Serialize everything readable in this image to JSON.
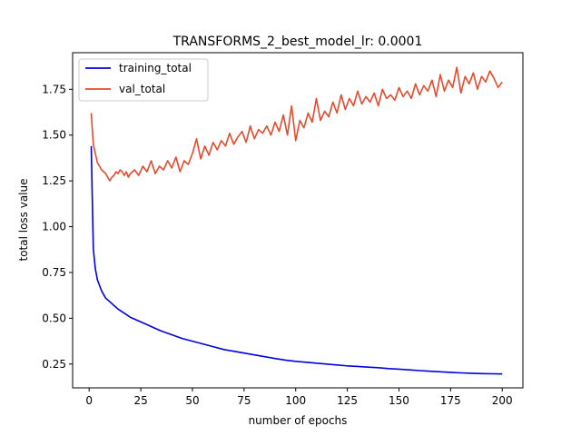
{
  "chart_data": {
    "type": "line",
    "title": "TRANSFORMS_2_best_model_lr: 0.0001",
    "xlabel": "number of epochs",
    "ylabel": "total loss value",
    "xlim": [
      -8,
      210
    ],
    "ylim": [
      0.12,
      1.95
    ],
    "xticks": [
      0,
      25,
      50,
      75,
      100,
      125,
      150,
      175,
      200
    ],
    "yticks": [
      0.25,
      0.5,
      0.75,
      1.0,
      1.25,
      1.5,
      1.75
    ],
    "ytick_labels": [
      "0.25",
      "0.50",
      "0.75",
      "1.00",
      "1.25",
      "1.50",
      "1.75"
    ],
    "grid": false,
    "legend_position": "top-left",
    "series": [
      {
        "name": "training_total",
        "color": "#0000dd",
        "points": [
          [
            1,
            1.44
          ],
          [
            2,
            0.88
          ],
          [
            3,
            0.77
          ],
          [
            4,
            0.71
          ],
          [
            5,
            0.68
          ],
          [
            6,
            0.65
          ],
          [
            7,
            0.63
          ],
          [
            8,
            0.61
          ],
          [
            9,
            0.6
          ],
          [
            10,
            0.59
          ],
          [
            12,
            0.57
          ],
          [
            14,
            0.55
          ],
          [
            16,
            0.535
          ],
          [
            18,
            0.52
          ],
          [
            20,
            0.505
          ],
          [
            22,
            0.495
          ],
          [
            25,
            0.48
          ],
          [
            28,
            0.465
          ],
          [
            30,
            0.455
          ],
          [
            35,
            0.43
          ],
          [
            40,
            0.41
          ],
          [
            45,
            0.39
          ],
          [
            50,
            0.375
          ],
          [
            55,
            0.36
          ],
          [
            60,
            0.345
          ],
          [
            65,
            0.33
          ],
          [
            70,
            0.32
          ],
          [
            75,
            0.31
          ],
          [
            80,
            0.3
          ],
          [
            85,
            0.29
          ],
          [
            90,
            0.28
          ],
          [
            95,
            0.272
          ],
          [
            100,
            0.265
          ],
          [
            105,
            0.26
          ],
          [
            110,
            0.255
          ],
          [
            115,
            0.25
          ],
          [
            120,
            0.245
          ],
          [
            125,
            0.24
          ],
          [
            130,
            0.237
          ],
          [
            135,
            0.233
          ],
          [
            140,
            0.23
          ],
          [
            145,
            0.225
          ],
          [
            150,
            0.222
          ],
          [
            155,
            0.218
          ],
          [
            160,
            0.214
          ],
          [
            165,
            0.211
          ],
          [
            170,
            0.208
          ],
          [
            175,
            0.205
          ],
          [
            180,
            0.202
          ],
          [
            185,
            0.2
          ],
          [
            190,
            0.198
          ],
          [
            195,
            0.197
          ],
          [
            200,
            0.196
          ]
        ]
      },
      {
        "name": "val_total",
        "color": "#e8492b",
        "points": [
          [
            1,
            1.62
          ],
          [
            2,
            1.45
          ],
          [
            3,
            1.4
          ],
          [
            4,
            1.35
          ],
          [
            5,
            1.33
          ],
          [
            6,
            1.31
          ],
          [
            7,
            1.3
          ],
          [
            8,
            1.29
          ],
          [
            9,
            1.27
          ],
          [
            10,
            1.25
          ],
          [
            11,
            1.27
          ],
          [
            12,
            1.28
          ],
          [
            13,
            1.3
          ],
          [
            14,
            1.29
          ],
          [
            15,
            1.31
          ],
          [
            16,
            1.3
          ],
          [
            17,
            1.28
          ],
          [
            18,
            1.3
          ],
          [
            19,
            1.27
          ],
          [
            20,
            1.29
          ],
          [
            22,
            1.31
          ],
          [
            24,
            1.28
          ],
          [
            26,
            1.33
          ],
          [
            28,
            1.3
          ],
          [
            30,
            1.36
          ],
          [
            32,
            1.29
          ],
          [
            34,
            1.33
          ],
          [
            36,
            1.31
          ],
          [
            38,
            1.36
          ],
          [
            40,
            1.32
          ],
          [
            42,
            1.38
          ],
          [
            44,
            1.3
          ],
          [
            46,
            1.36
          ],
          [
            48,
            1.34
          ],
          [
            50,
            1.4
          ],
          [
            52,
            1.48
          ],
          [
            54,
            1.37
          ],
          [
            56,
            1.44
          ],
          [
            58,
            1.39
          ],
          [
            60,
            1.46
          ],
          [
            62,
            1.42
          ],
          [
            64,
            1.47
          ],
          [
            66,
            1.44
          ],
          [
            68,
            1.51
          ],
          [
            70,
            1.45
          ],
          [
            72,
            1.49
          ],
          [
            74,
            1.52
          ],
          [
            76,
            1.46
          ],
          [
            78,
            1.55
          ],
          [
            80,
            1.48
          ],
          [
            82,
            1.53
          ],
          [
            84,
            1.51
          ],
          [
            86,
            1.55
          ],
          [
            88,
            1.5
          ],
          [
            90,
            1.57
          ],
          [
            92,
            1.52
          ],
          [
            94,
            1.61
          ],
          [
            96,
            1.5
          ],
          [
            98,
            1.66
          ],
          [
            100,
            1.47
          ],
          [
            102,
            1.58
          ],
          [
            104,
            1.54
          ],
          [
            106,
            1.62
          ],
          [
            108,
            1.57
          ],
          [
            110,
            1.7
          ],
          [
            112,
            1.58
          ],
          [
            114,
            1.63
          ],
          [
            116,
            1.6
          ],
          [
            118,
            1.68
          ],
          [
            120,
            1.62
          ],
          [
            122,
            1.72
          ],
          [
            124,
            1.64
          ],
          [
            126,
            1.7
          ],
          [
            128,
            1.66
          ],
          [
            130,
            1.74
          ],
          [
            132,
            1.67
          ],
          [
            134,
            1.71
          ],
          [
            136,
            1.68
          ],
          [
            138,
            1.73
          ],
          [
            140,
            1.66
          ],
          [
            142,
            1.75
          ],
          [
            144,
            1.7
          ],
          [
            146,
            1.72
          ],
          [
            148,
            1.69
          ],
          [
            150,
            1.76
          ],
          [
            152,
            1.71
          ],
          [
            154,
            1.74
          ],
          [
            156,
            1.7
          ],
          [
            158,
            1.78
          ],
          [
            160,
            1.72
          ],
          [
            162,
            1.77
          ],
          [
            164,
            1.74
          ],
          [
            166,
            1.8
          ],
          [
            168,
            1.71
          ],
          [
            170,
            1.83
          ],
          [
            172,
            1.74
          ],
          [
            174,
            1.8
          ],
          [
            176,
            1.76
          ],
          [
            178,
            1.87
          ],
          [
            180,
            1.73
          ],
          [
            182,
            1.82
          ],
          [
            184,
            1.78
          ],
          [
            186,
            1.84
          ],
          [
            188,
            1.75
          ],
          [
            190,
            1.82
          ],
          [
            192,
            1.79
          ],
          [
            194,
            1.85
          ],
          [
            196,
            1.81
          ],
          [
            198,
            1.76
          ],
          [
            200,
            1.79
          ]
        ]
      }
    ]
  }
}
